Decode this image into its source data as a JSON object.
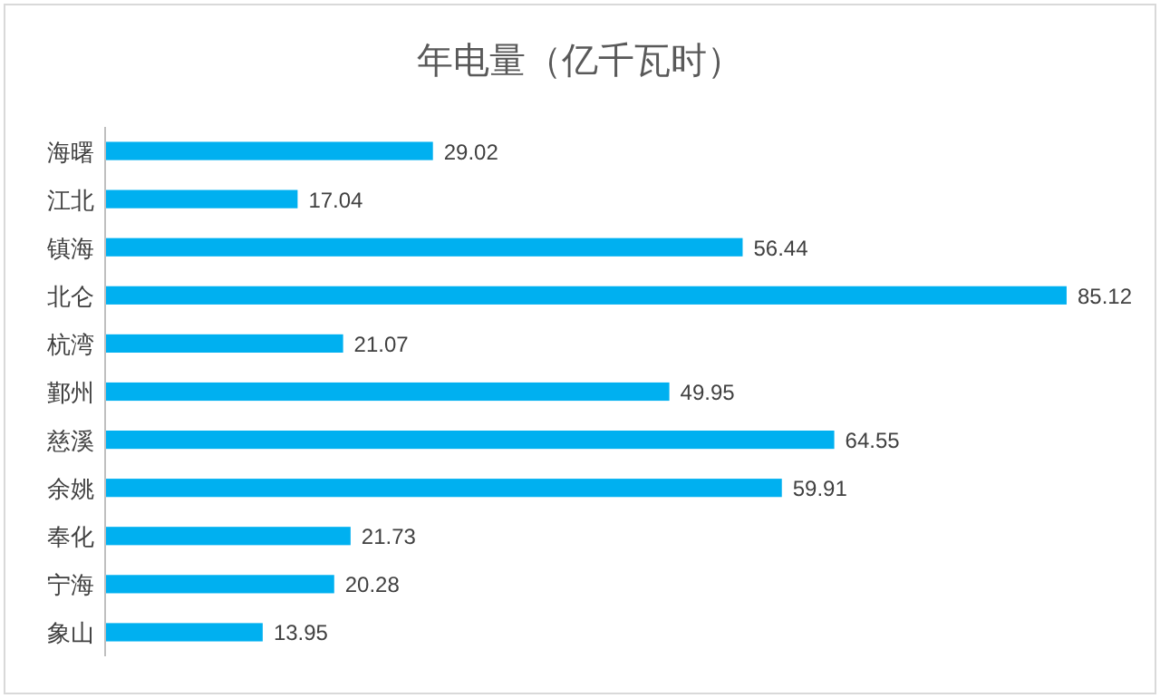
{
  "chart_data": {
    "type": "bar",
    "orientation": "horizontal",
    "title": "年电量（亿千瓦时）",
    "categories": [
      "海曙",
      "江北",
      "镇海",
      "北仑",
      "杭湾",
      "鄞州",
      "慈溪",
      "余姚",
      "奉化",
      "宁海",
      "象山"
    ],
    "values": [
      29.02,
      17.04,
      56.44,
      85.12,
      21.07,
      49.95,
      64.55,
      59.91,
      21.73,
      20.28,
      13.95
    ],
    "color": "#00b0f0",
    "data_labels": true
  }
}
